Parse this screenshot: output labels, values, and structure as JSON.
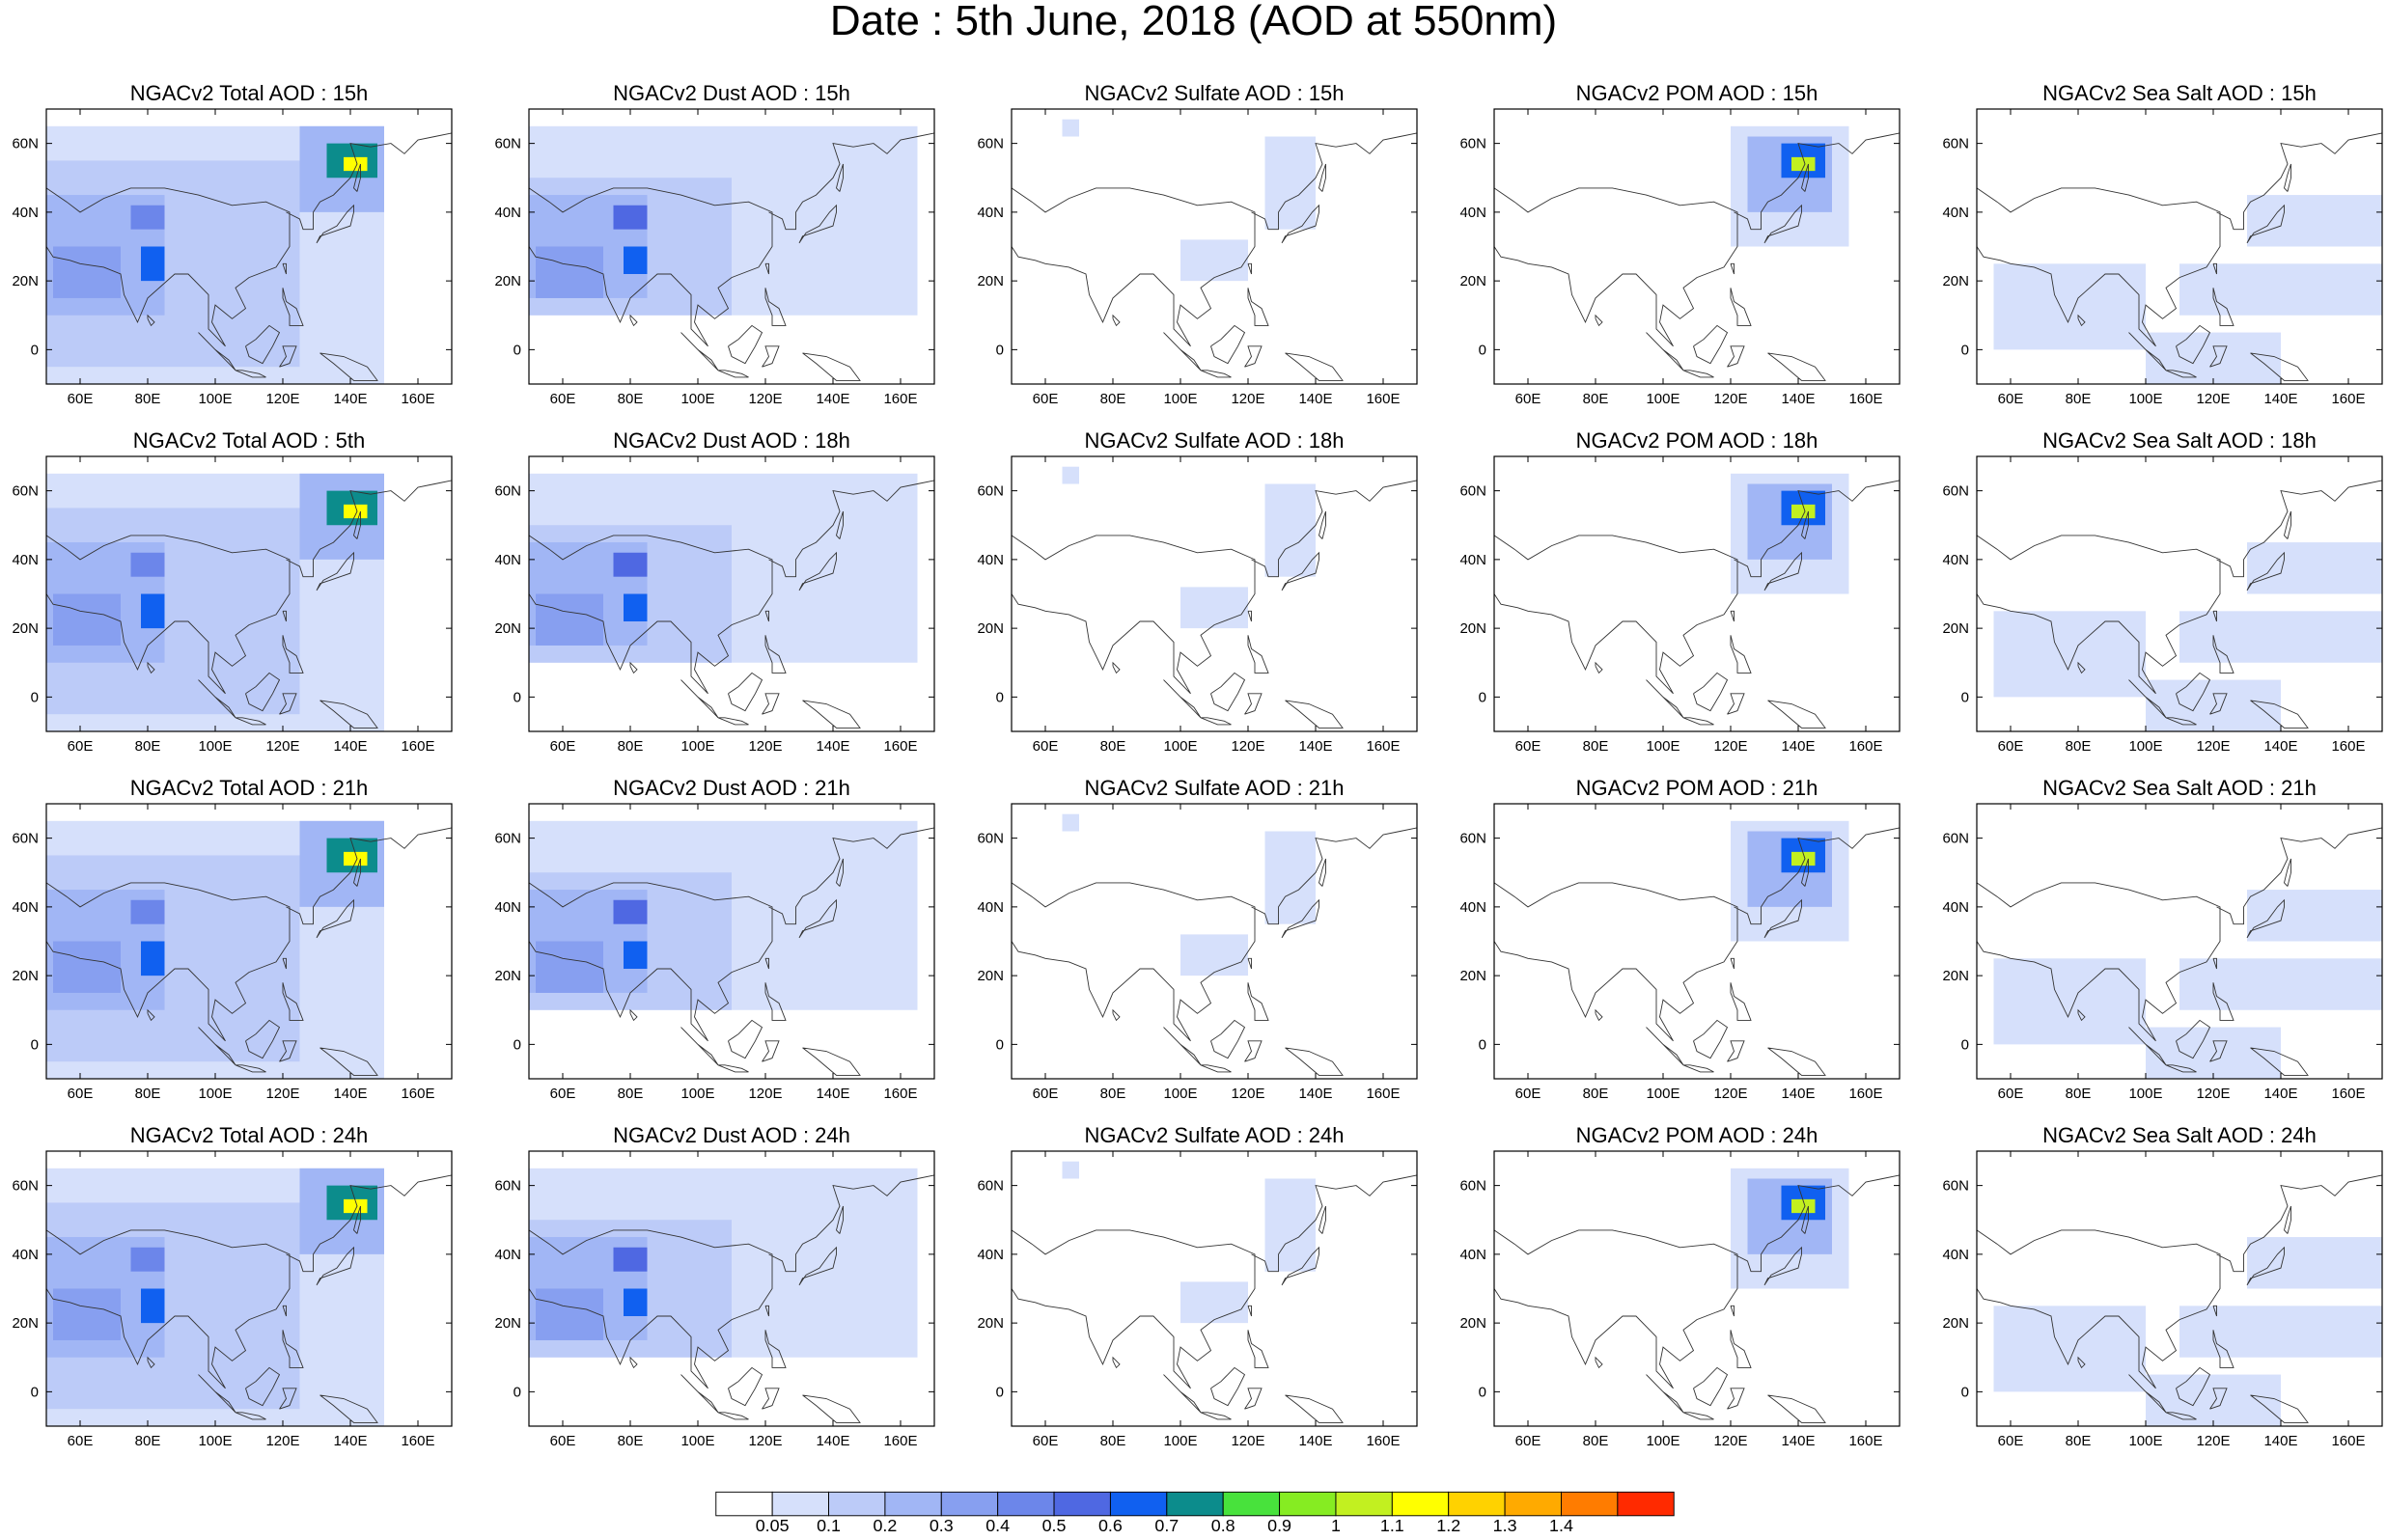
{
  "figure": {
    "title": "Date : 5th June, 2018 (AOD at 550nm)"
  },
  "panels": [
    {
      "title": "NGACv2 Total AOD : 15h",
      "species": "total"
    },
    {
      "title": "NGACv2 Dust AOD : 15h",
      "species": "dust"
    },
    {
      "title": "NGACv2 Sulfate AOD : 15h",
      "species": "sulfate"
    },
    {
      "title": "NGACv2 POM AOD : 15h",
      "species": "pom"
    },
    {
      "title": "NGACv2 Sea Salt AOD : 15h",
      "species": "seasalt"
    },
    {
      "title": "NGACv2 Total AOD : 5th",
      "species": "total"
    },
    {
      "title": "NGACv2 Dust AOD : 18h",
      "species": "dust"
    },
    {
      "title": "NGACv2 Sulfate AOD : 18h",
      "species": "sulfate"
    },
    {
      "title": "NGACv2 POM AOD : 18h",
      "species": "pom"
    },
    {
      "title": "NGACv2 Sea Salt AOD : 18h",
      "species": "seasalt"
    },
    {
      "title": "NGACv2 Total AOD : 21h",
      "species": "total"
    },
    {
      "title": "NGACv2 Dust AOD : 21h",
      "species": "dust"
    },
    {
      "title": "NGACv2 Sulfate AOD : 21h",
      "species": "sulfate"
    },
    {
      "title": "NGACv2 POM AOD : 21h",
      "species": "pom"
    },
    {
      "title": "NGACv2 Sea Salt AOD : 21h",
      "species": "seasalt"
    },
    {
      "title": "NGACv2 Total AOD : 24h",
      "species": "total"
    },
    {
      "title": "NGACv2 Dust AOD : 24h",
      "species": "dust"
    },
    {
      "title": "NGACv2 Sulfate AOD : 24h",
      "species": "sulfate"
    },
    {
      "title": "NGACv2 POM AOD : 24h",
      "species": "pom"
    },
    {
      "title": "NGACv2 Sea Salt  AOD : 24h",
      "species": "seasalt"
    }
  ],
  "chart_data": {
    "type": "heatmap",
    "title": "Date : 5th June, 2018 (AOD at 550nm)",
    "xlim": [
      50,
      170
    ],
    "ylim": [
      -10,
      70
    ],
    "x_ticks": [
      60,
      80,
      100,
      120,
      140,
      160
    ],
    "x_tick_labels": [
      "60E",
      "80E",
      "100E",
      "120E",
      "140E",
      "160E"
    ],
    "y_ticks": [
      0,
      20,
      40,
      60
    ],
    "y_tick_labels": [
      "0",
      "20N",
      "40N",
      "60N"
    ],
    "colorbar": {
      "labels": [
        "0.05",
        "0.1",
        "0.2",
        "0.3",
        "0.4",
        "0.5",
        "0.6",
        "0.7",
        "0.8",
        "0.9",
        "1",
        "1.1",
        "1.2",
        "1.3",
        "1.4"
      ],
      "colors": [
        "#ffffff",
        "#d6e0fb",
        "#bccbf8",
        "#a1b6f5",
        "#879ff0",
        "#6c86ea",
        "#4f68e2",
        "#1060f0",
        "#0c8c8c",
        "#48e23c",
        "#86ec22",
        "#c2f020",
        "#ffff00",
        "#ffd200",
        "#ffaa00",
        "#ff7c00",
        "#ff2a00"
      ]
    },
    "regions": {
      "total": [
        {
          "lon": [
            50,
            150
          ],
          "lat": [
            -10,
            65
          ],
          "level": 1
        },
        {
          "lon": [
            50,
            125
          ],
          "lat": [
            -5,
            55
          ],
          "level": 2
        },
        {
          "lon": [
            50,
            85
          ],
          "lat": [
            10,
            45
          ],
          "level": 3
        },
        {
          "lon": [
            52,
            72
          ],
          "lat": [
            15,
            30
          ],
          "level": 4
        },
        {
          "lon": [
            75,
            85
          ],
          "lat": [
            35,
            42
          ],
          "level": 5
        },
        {
          "lon": [
            78,
            85
          ],
          "lat": [
            20,
            30
          ],
          "level": 7
        },
        {
          "lon": [
            125,
            150
          ],
          "lat": [
            40,
            65
          ],
          "level": 3
        },
        {
          "lon": [
            133,
            148
          ],
          "lat": [
            50,
            60
          ],
          "level": 8
        },
        {
          "lon": [
            138,
            145
          ],
          "lat": [
            52,
            56
          ],
          "level": 12
        }
      ],
      "dust": [
        {
          "lon": [
            50,
            165
          ],
          "lat": [
            10,
            65
          ],
          "level": 1
        },
        {
          "lon": [
            50,
            110
          ],
          "lat": [
            10,
            50
          ],
          "level": 2
        },
        {
          "lon": [
            50,
            85
          ],
          "lat": [
            15,
            45
          ],
          "level": 3
        },
        {
          "lon": [
            52,
            72
          ],
          "lat": [
            15,
            30
          ],
          "level": 4
        },
        {
          "lon": [
            75,
            85
          ],
          "lat": [
            35,
            42
          ],
          "level": 6
        },
        {
          "lon": [
            78,
            85
          ],
          "lat": [
            22,
            30
          ],
          "level": 7
        }
      ],
      "sulfate": [
        {
          "lon": [
            100,
            120
          ],
          "lat": [
            20,
            32
          ],
          "level": 1
        },
        {
          "lon": [
            125,
            140
          ],
          "lat": [
            35,
            62
          ],
          "level": 1
        },
        {
          "lon": [
            65,
            70
          ],
          "lat": [
            62,
            67
          ],
          "level": 1
        }
      ],
      "pom": [
        {
          "lon": [
            120,
            155
          ],
          "lat": [
            30,
            65
          ],
          "level": 1
        },
        {
          "lon": [
            125,
            150
          ],
          "lat": [
            40,
            62
          ],
          "level": 3
        },
        {
          "lon": [
            135,
            148
          ],
          "lat": [
            50,
            60
          ],
          "level": 7
        },
        {
          "lon": [
            138,
            145
          ],
          "lat": [
            52,
            56
          ],
          "level": 11
        }
      ],
      "seasalt": [
        {
          "lon": [
            55,
            100
          ],
          "lat": [
            0,
            25
          ],
          "level": 1
        },
        {
          "lon": [
            110,
            170
          ],
          "lat": [
            10,
            25
          ],
          "level": 1
        },
        {
          "lon": [
            100,
            140
          ],
          "lat": [
            -10,
            5
          ],
          "level": 1
        },
        {
          "lon": [
            130,
            170
          ],
          "lat": [
            30,
            45
          ],
          "level": 1
        }
      ]
    }
  }
}
